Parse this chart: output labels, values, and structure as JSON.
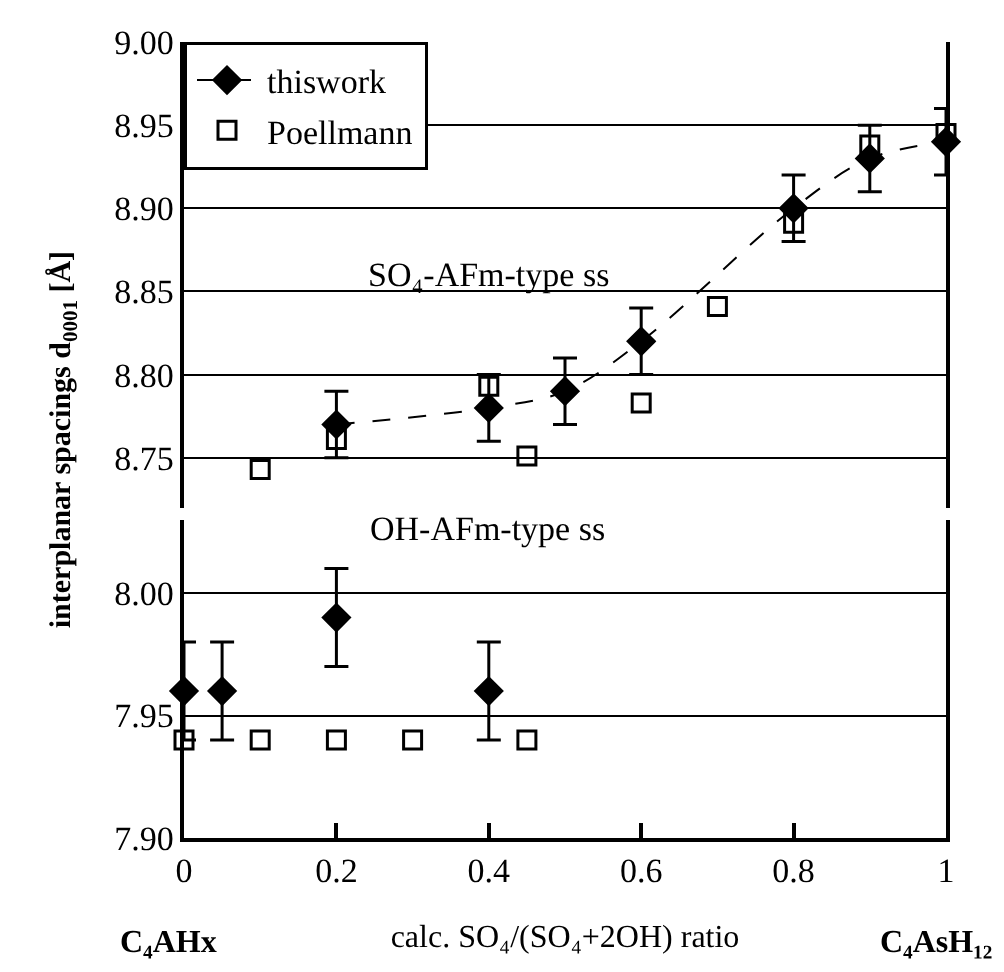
{
  "chart_data": [
    {
      "type": "scatter",
      "ylabel": "interplanar spacings d$_{0001}$ [Å]",
      "xlim": [
        0,
        1
      ],
      "ylim": [
        8.72,
        9.0
      ],
      "yticks": [
        {
          "value": 8.75,
          "label": "8.75"
        },
        {
          "value": 8.8,
          "label": "8.80"
        },
        {
          "value": 8.85,
          "label": "8.85"
        },
        {
          "value": 8.9,
          "label": "8.90"
        },
        {
          "value": 8.95,
          "label": "8.95"
        },
        {
          "value": 9.0,
          "label": "9.00"
        }
      ],
      "tick_labels": "y",
      "grid": "y",
      "legend": "top left",
      "annotations": [
        "SO₄-AFm-type ss"
      ],
      "series": [
        {
          "name": "thiswork",
          "type": "line",
          "marker": "diamond",
          "line_style": "dashed",
          "color": "#000000",
          "x": [
            0.2,
            0.4,
            0.5,
            0.6,
            0.8,
            0.9,
            1.0
          ],
          "values": [
            8.77,
            8.78,
            8.79,
            8.82,
            8.9,
            8.93,
            8.94
          ],
          "errors": [
            0.02,
            0.02,
            0.02,
            0.02,
            0.02,
            0.02,
            0.02
          ]
        },
        {
          "name": "Poellmann",
          "marker": "square",
          "color": "#000000",
          "x": [
            0.1,
            0.2,
            0.4,
            0.45,
            0.6,
            0.7,
            0.8,
            0.9,
            1.0
          ],
          "values": [
            8.743,
            8.761,
            8.793,
            8.751,
            8.783,
            8.841,
            8.891,
            8.938,
            8.945
          ]
        }
      ]
    },
    {
      "type": "scatter",
      "xlabel": "calc. SO₄/(SO₄+2OH) ratio",
      "xlim": [
        0,
        1
      ],
      "xticks": [
        0,
        0.2,
        0.4,
        0.6,
        0.8,
        1
      ],
      "ylim": [
        7.9,
        8.03
      ],
      "yticks": [
        {
          "value": 7.9,
          "label": "7.90"
        },
        {
          "value": 7.95,
          "label": "7.95"
        },
        {
          "value": 8.0,
          "label": "8.00"
        }
      ],
      "grid": "y",
      "annotations": [
        "OH-AFm-type ss",
        "C₄AHx",
        "C₄AsH₁₂"
      ],
      "series": [
        {
          "marker": "diamond",
          "color": "#000000",
          "x": [
            0,
            0.05,
            0.2,
            0.4
          ],
          "values": [
            7.96,
            7.96,
            7.99,
            7.96
          ],
          "errors": [
            0.02,
            0.02,
            0.02,
            0.02
          ]
        },
        {
          "marker": "square",
          "color": "#000000",
          "x": [
            0,
            0.1,
            0.2,
            0.3,
            0.45
          ],
          "values": [
            7.94,
            7.94,
            7.94,
            7.94,
            7.94
          ]
        }
      ]
    }
  ]
}
